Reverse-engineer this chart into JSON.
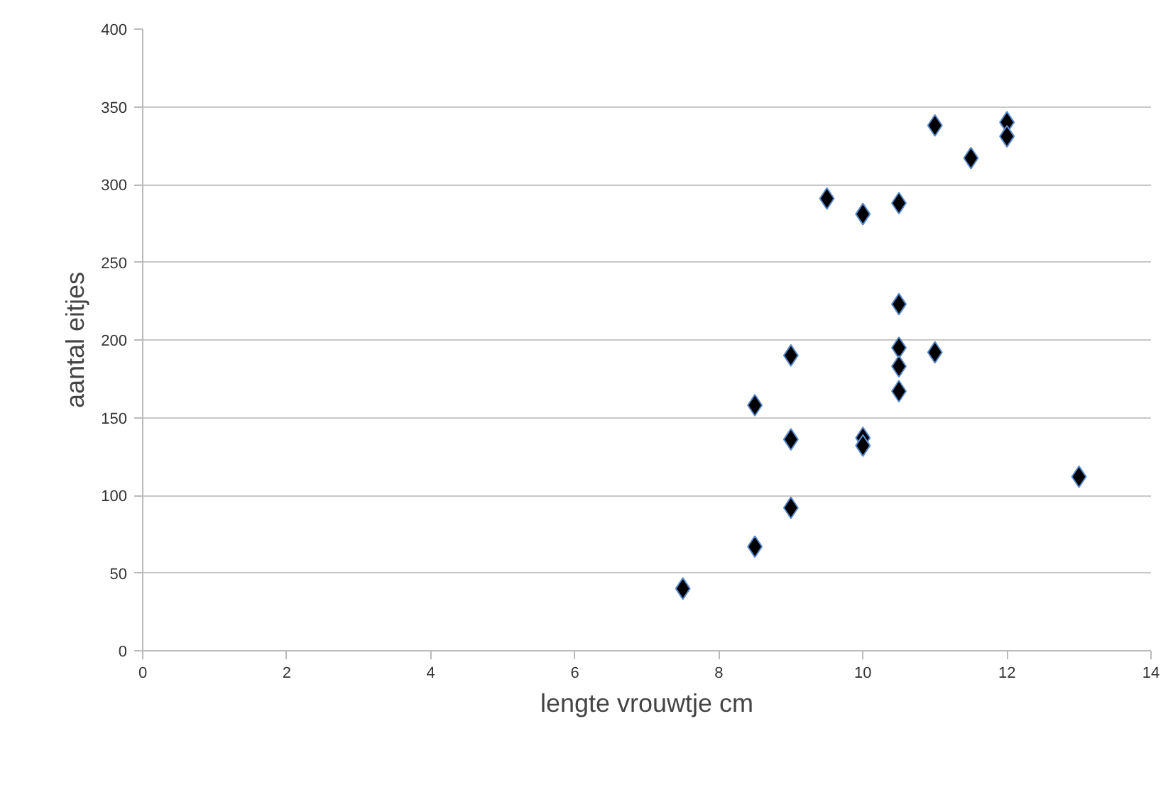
{
  "chart_data": {
    "type": "scatter",
    "xlabel": "lengte vrouwtje cm",
    "ylabel": "aantal eitjes",
    "x": [
      7.5,
      8.5,
      8.5,
      9,
      9,
      9,
      9.5,
      10,
      10,
      10,
      10.5,
      10.5,
      10.5,
      10.5,
      10.5,
      11,
      11,
      11.5,
      12,
      12,
      13
    ],
    "values": [
      40,
      67,
      158,
      92,
      136,
      190,
      291,
      281,
      137,
      132,
      288,
      223,
      195,
      183,
      167,
      338,
      192,
      317,
      340,
      331,
      112
    ],
    "color": "#000000",
    "marker": "diamond",
    "xlim": [
      0,
      14
    ],
    "xticks": [
      0,
      2,
      4,
      6,
      8,
      10,
      12,
      14
    ],
    "ylim": [
      0,
      400
    ],
    "yticks": [
      0,
      50,
      100,
      150,
      200,
      250,
      300,
      350,
      400
    ],
    "grid": "y"
  }
}
